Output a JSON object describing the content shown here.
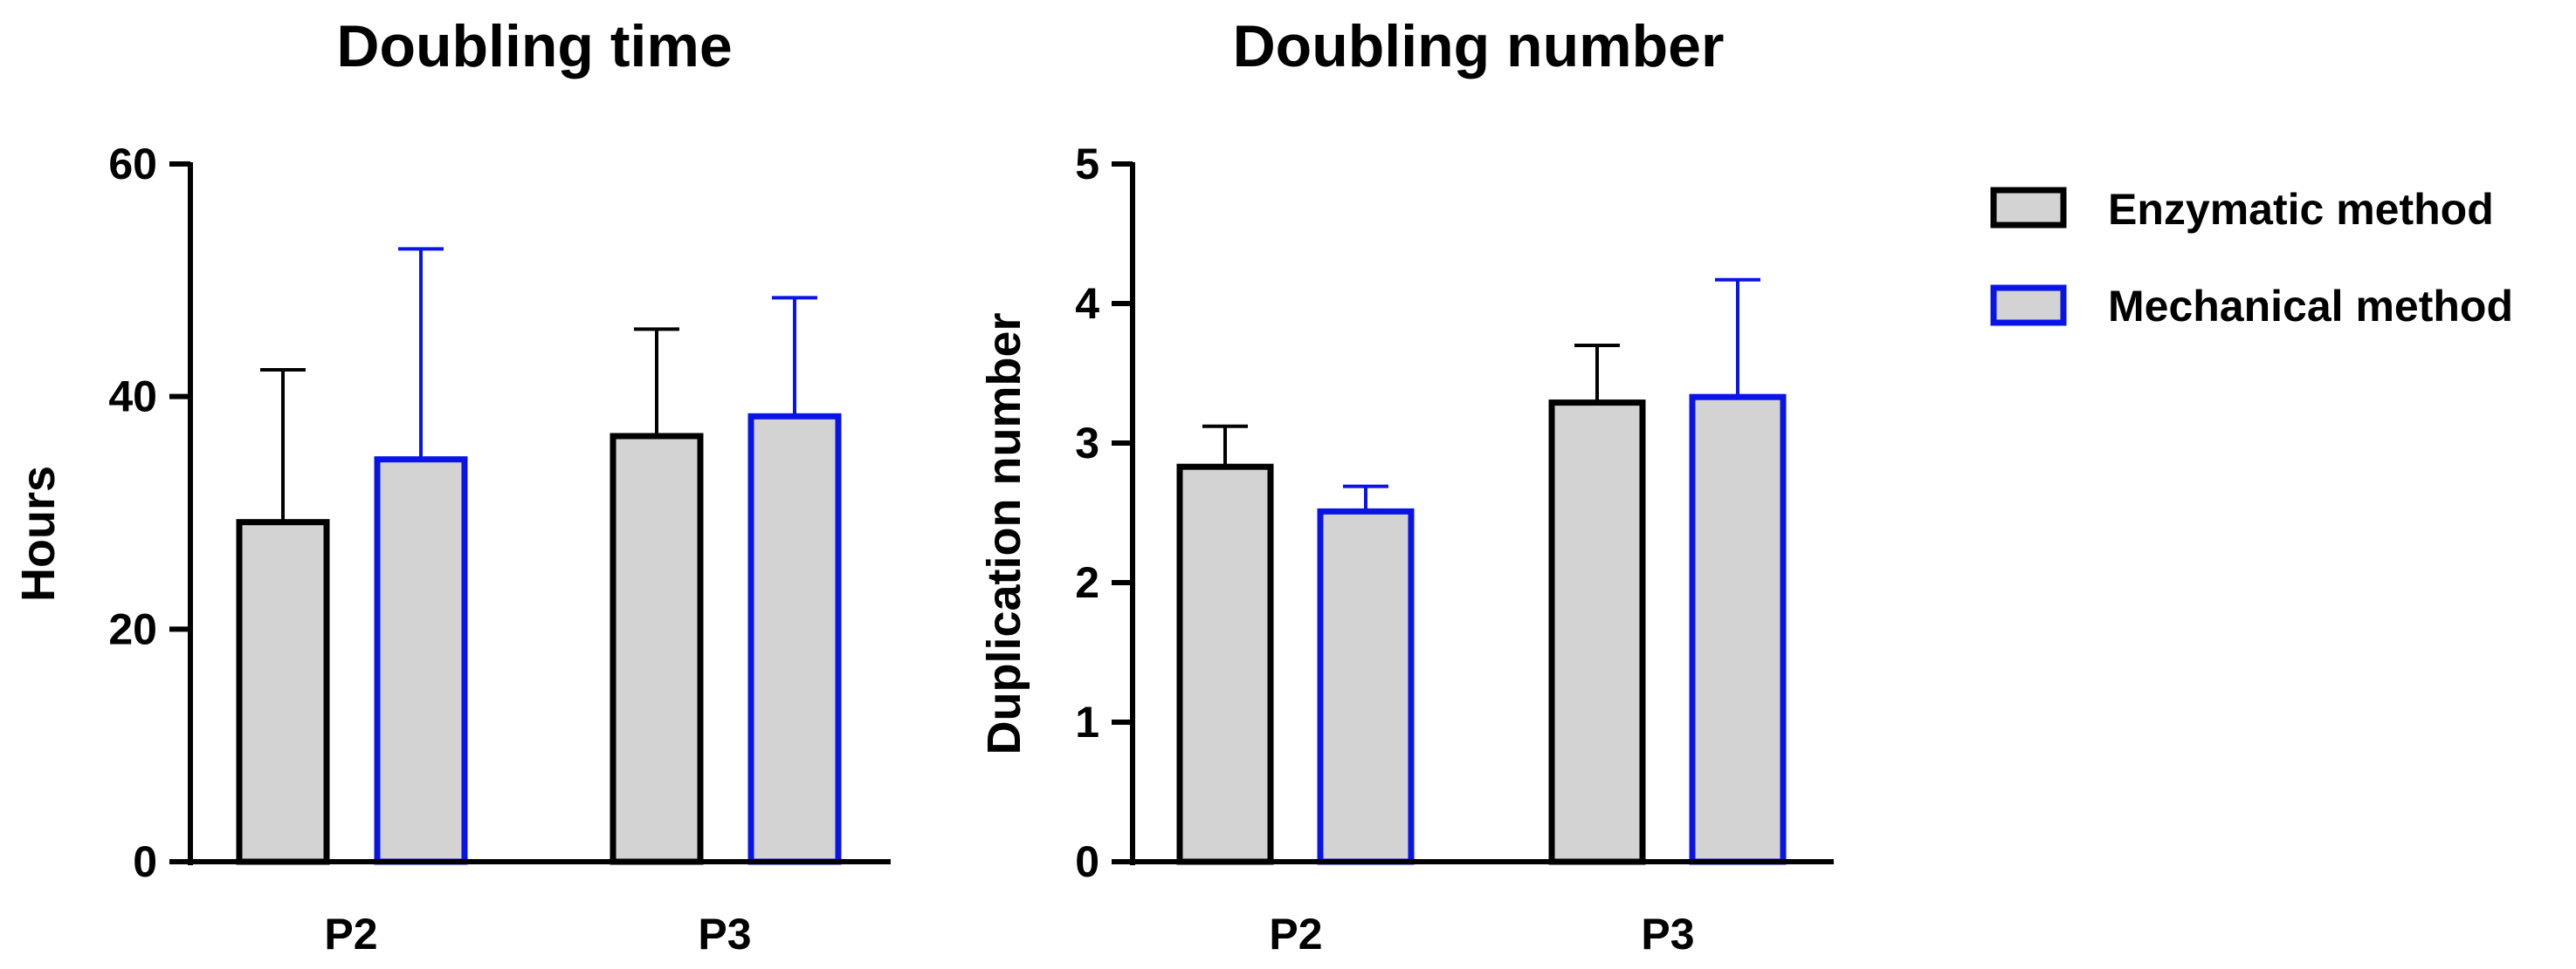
{
  "colors": {
    "bar_fill": "#d3d3d3",
    "enzymatic_stroke": "#000000",
    "mechanical_stroke": "#0a14e6",
    "axis": "#000000",
    "background": "#ffffff"
  },
  "legend": {
    "position": "right",
    "items": [
      {
        "label": "Enzymatic method",
        "series_index": 0
      },
      {
        "label": "Mechanical method",
        "series_index": 1
      }
    ]
  },
  "chart_data": [
    {
      "type": "bar",
      "title": "Doubling time",
      "xlabel": "",
      "ylabel": "Hours",
      "categories": [
        "P2",
        "P3"
      ],
      "ylim": [
        0,
        60
      ],
      "yticks": [
        0,
        20,
        40,
        60
      ],
      "ytick_labels": [
        "0",
        "20",
        "40",
        "60"
      ],
      "grid": false,
      "series": [
        {
          "name": "Enzymatic method",
          "values": [
            29.2,
            36.6
          ],
          "errors": [
            13.1,
            9.2
          ]
        },
        {
          "name": "Mechanical method",
          "values": [
            34.6,
            38.3
          ],
          "errors": [
            18.1,
            10.2
          ]
        }
      ]
    },
    {
      "type": "bar",
      "title": "Doubling number",
      "xlabel": "",
      "ylabel": "Duplication number",
      "categories": [
        "P2",
        "P3"
      ],
      "ylim": [
        0,
        5
      ],
      "yticks": [
        0,
        1,
        2,
        3,
        4,
        5
      ],
      "ytick_labels": [
        "0",
        "1",
        "2",
        "3",
        "4",
        "5"
      ],
      "grid": false,
      "series": [
        {
          "name": "Enzymatic method",
          "values": [
            2.83,
            3.29
          ],
          "errors": [
            0.29,
            0.41
          ]
        },
        {
          "name": "Mechanical method",
          "values": [
            2.51,
            3.33
          ],
          "errors": [
            0.18,
            0.84
          ]
        }
      ]
    }
  ]
}
